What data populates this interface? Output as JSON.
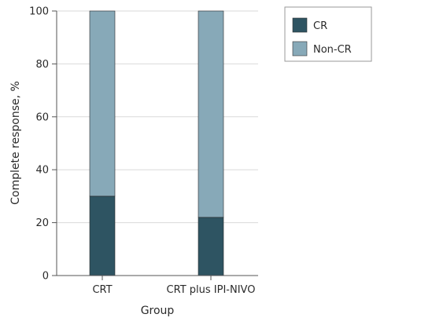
{
  "chart_data": {
    "type": "bar",
    "stacked": true,
    "categories": [
      "CRT",
      "CRT plus IPI-NIVO"
    ],
    "series": [
      {
        "name": "CR",
        "values": [
          30,
          22
        ],
        "color": "#2e5462"
      },
      {
        "name": "Non-CR",
        "values": [
          70,
          78
        ],
        "color": "#87a9b8"
      }
    ],
    "xlabel": "Group",
    "ylabel": "Complete response, %",
    "ylim": [
      0,
      100
    ],
    "yticks": [
      0,
      20,
      40,
      60,
      80,
      100
    ],
    "grid": true,
    "legend_position": "top-right"
  }
}
